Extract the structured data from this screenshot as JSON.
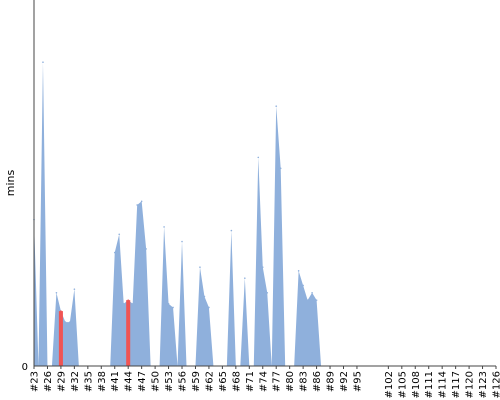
{
  "chart_data": {
    "type": "area",
    "title": "",
    "xlabel": "",
    "ylabel": "mins",
    "y_tick_labels": [
      "0"
    ],
    "ylim": [
      0,
      100
    ],
    "grid": false,
    "colors": {
      "series": "#8fb0dc",
      "highlight": "#f05454",
      "gap": "#d8d0c0"
    },
    "x": [
      "#23",
      "#24",
      "#25",
      "#26",
      "#27",
      "#28",
      "#29",
      "#30",
      "#31",
      "#32",
      "#33",
      "#34",
      "#35",
      "#36",
      "#37",
      "#38",
      "#39",
      "#40",
      "#41",
      "#42",
      "#43",
      "#44",
      "#45",
      "#46",
      "#47",
      "#48",
      "#49",
      "#50",
      "#51",
      "#52",
      "#53",
      "#54",
      "#55",
      "#56",
      "#57",
      "#58",
      "#59",
      "#60",
      "#61",
      "#62",
      "#63",
      "#64",
      "#65",
      "#66",
      "#67",
      "#68",
      "#69",
      "#70",
      "#71",
      "#72",
      "#73",
      "#74",
      "#75",
      "#76",
      "#77",
      "#78",
      "#79",
      "#80",
      "#81",
      "#82",
      "#83",
      "#84",
      "#85",
      "#86",
      "#87",
      "#88",
      "#89",
      "#90",
      "#91",
      "#92",
      "#93",
      "#94",
      "#95",
      "#96",
      "#97",
      "#98",
      "#99",
      "#100",
      "#101",
      "#102",
      "#103",
      "#104",
      "#105",
      "#106",
      "#107",
      "#108",
      "#109",
      "#110",
      "#111",
      "#112",
      "#113",
      "#114",
      "#115",
      "#116",
      "#117",
      "#118",
      "#119",
      "#120",
      "#121",
      "#122",
      "#123",
      "#124",
      "#125",
      "#126"
    ],
    "x_tick_labels": [
      "#23",
      "#26",
      "#29",
      "#32",
      "#35",
      "#38",
      "#41",
      "#44",
      "#47",
      "#50",
      "#53",
      "#56",
      "#59",
      "#62",
      "#65",
      "#68",
      "#71",
      "#74",
      "#77",
      "#80",
      "#83",
      "#86",
      "#89",
      "#92",
      "#95",
      "#102",
      "#105",
      "#108",
      "#111",
      "#114",
      "#117",
      "#120",
      "#123",
      "#126"
    ],
    "series": [
      {
        "values": [
          40,
          0,
          83,
          0,
          0,
          20,
          15,
          12,
          12,
          21,
          0,
          0,
          0,
          0,
          0,
          0,
          0,
          0,
          31,
          36,
          17,
          18,
          17,
          44,
          45,
          32,
          0,
          0,
          0,
          38,
          17,
          16,
          0,
          34,
          0,
          0,
          0,
          27,
          19,
          16,
          0,
          0,
          0,
          0,
          37,
          0,
          0,
          24,
          0,
          0,
          57,
          27,
          20,
          0,
          71,
          54,
          0,
          0,
          0,
          26,
          22,
          18,
          20,
          18,
          0,
          0,
          0,
          0,
          0,
          0,
          0,
          0,
          0,
          0,
          0,
          0,
          0,
          0,
          0,
          0,
          0,
          0,
          0,
          0,
          0,
          0,
          0,
          0,
          0,
          0,
          0,
          0,
          0,
          0,
          0,
          0,
          0,
          0,
          0,
          0,
          0,
          0,
          0,
          0
        ]
      }
    ],
    "highlights": [
      6,
      21,
      72
    ]
  }
}
